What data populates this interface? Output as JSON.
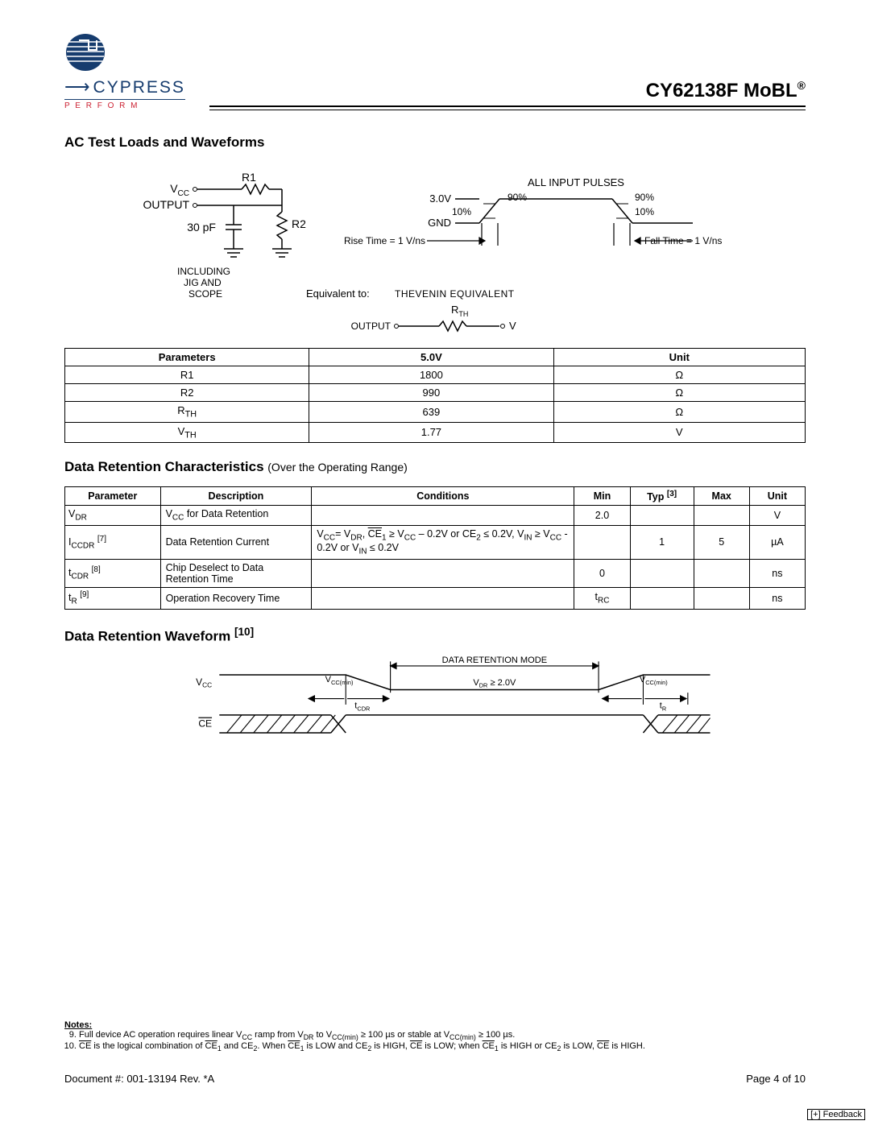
{
  "header": {
    "brand": "CYPRESS",
    "tagline": "P E R F O R M",
    "product": "CY62138F MoBL",
    "reg": "®"
  },
  "section1": "AC Test Loads and Waveforms",
  "fig1": {
    "vcc": "V",
    "vcc_sub": "CC",
    "output": "OUTPUT",
    "r1": "R1",
    "r2": "R2",
    "cap": "30 pF",
    "including": "INCLUDING\nJIG AND\nSCOPE",
    "equiv": "Equivalent to:",
    "thev": "THEVENIN  EQUIVALENT",
    "rth": "R",
    "rth_sub": "TH",
    "output2": "OUTPUT",
    "v": "V",
    "all_input": "ALL INPUT PULSES",
    "hi": "3.0V",
    "lo": "GND",
    "p90": "90%",
    "p10": "10%",
    "rise": "Rise Time = 1 V/ns",
    "fall": "Fall Time = 1 V/ns"
  },
  "table1": {
    "headers": [
      "Parameters",
      "5.0V",
      "Unit"
    ],
    "rows": [
      [
        "R1",
        "1800",
        "Ω"
      ],
      [
        "R2",
        "990",
        "Ω"
      ],
      [
        "R<sub>TH</sub>",
        "639",
        "Ω"
      ],
      [
        "V<sub>TH</sub>",
        "1.77",
        "V"
      ]
    ]
  },
  "section2": "Data Retention Characteristics",
  "section2_sub": "(Over the Operating Range)",
  "table2": {
    "headers": [
      "Parameter",
      "Description",
      "Conditions",
      "Min",
      "Typ [3]",
      "Max",
      "Unit"
    ],
    "rows": [
      {
        "p": "V<sub class='s'>DR</sub>",
        "d": "V<sub class='s'>CC</sub> for Data Retention",
        "c": "",
        "min": "2.0",
        "typ": "",
        "max": "",
        "u": "V"
      },
      {
        "p": "I<sub class='s'>CCDR</sub> <sup class='s'>[7]</sup>",
        "d": "Data Retention Current",
        "c": "V<sub class='s'>CC</sub>= V<sub class='s'>DR</sub>, <span class='ovl'>CE</span><sub class='s'>1</sub> ≥ V<sub class='s'>CC</sub> – 0.2V or CE<sub class='s'>2</sub> ≤ 0.2V, V<sub class='s'>IN</sub> ≥ V<sub class='s'>CC</sub> - 0.2V or V<sub class='s'>IN</sub> ≤ 0.2V",
        "min": "",
        "typ": "1",
        "max": "5",
        "u": "µA"
      },
      {
        "p": "t<sub class='s'>CDR</sub> <sup class='s'>[8]</sup>",
        "d": "Chip Deselect to Data Retention Time",
        "c": "",
        "min": "0",
        "typ": "",
        "max": "",
        "u": "ns"
      },
      {
        "p": "t<sub class='s'>R</sub> <sup class='s'>[9]</sup>",
        "d": "Operation Recovery Time",
        "c": "",
        "min": "t<sub class='s'>RC</sub>",
        "typ": "",
        "max": "",
        "u": "ns"
      }
    ]
  },
  "section3": "Data Retention Waveform",
  "section3_sup": "[10]",
  "fig2": {
    "vcc": "V",
    "vcc_sub": "CC",
    "ce": "CE",
    "vccmin": "V",
    "vccmin_sub": "CC(min)",
    "drmode": "DATA RETENTION MODE",
    "vdr": "V",
    "vdr_sub": "DR",
    "vdr_ge": "≥  2.0V",
    "tcdr": "t",
    "tcdr_sub": "CDR",
    "tr": "t",
    "tr_sub": "R"
  },
  "notes": {
    "h": "Notes:",
    "n9": "Full device AC operation requires linear V<sub class='s'>CC</sub> ramp from V<sub class='s'>DR</sub> to V<sub class='s'>CC(min)</sub> ≥ 100 µs or stable at V<sub class='s'>CC(min)</sub> ≥ 100 µs.",
    "n10": "<span class='ovl'>CE</span> is the logical combination of <span class='ovl'>CE</span><sub class='s'>1</sub> and CE<sub class='s'>2</sub>. When <span class='ovl'>CE</span><sub class='s'>1</sub> is LOW and CE<sub class='s'>2</sub> is HIGH, <span class='ovl'>CE</span> is LOW; when <span class='ovl'>CE</span><sub class='s'>1</sub> is HIGH or CE<sub class='s'>2</sub> is LOW, <span class='ovl'>CE</span> is HIGH."
  },
  "footer": {
    "doc": "Document #: 001-13194 Rev. *A",
    "page": "Page 4 of 10",
    "feedback": "[+] Feedback"
  },
  "colors": {
    "navy": "#163c6e",
    "red": "#c23"
  },
  "geom": {
    "table1_col_w": [
      265,
      265,
      265
    ],
    "table2_col_w": [
      110,
      170,
      280,
      50,
      60,
      50,
      50
    ]
  }
}
